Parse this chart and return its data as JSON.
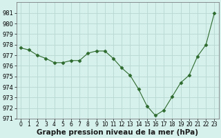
{
  "x": [
    0,
    1,
    2,
    3,
    4,
    5,
    6,
    7,
    8,
    9,
    10,
    11,
    12,
    13,
    14,
    15,
    16,
    17,
    18,
    19,
    20,
    21,
    22,
    23
  ],
  "y": [
    977.7,
    977.5,
    977.0,
    976.7,
    976.3,
    976.3,
    976.5,
    976.5,
    977.2,
    977.4,
    977.4,
    976.7,
    975.8,
    975.1,
    973.8,
    972.2,
    971.3,
    971.8,
    973.1,
    974.4,
    975.1,
    976.9,
    978.0,
    981.0
  ],
  "line_color": "#2d6a2d",
  "marker": "D",
  "markersize": 2.5,
  "bg_color": "#d6f0eb",
  "grid_color": "#b8d8d0",
  "xlabel": "Graphe pression niveau de la mer (hPa)",
  "ylim": [
    971,
    982
  ],
  "yticks": [
    971,
    972,
    973,
    974,
    975,
    976,
    977,
    978,
    979,
    980,
    981
  ],
  "xticks": [
    0,
    1,
    2,
    3,
    4,
    5,
    6,
    7,
    8,
    9,
    10,
    11,
    12,
    13,
    14,
    15,
    16,
    17,
    18,
    19,
    20,
    21,
    22,
    23
  ],
  "xlabel_fontsize": 7.5,
  "ytick_fontsize": 6.0,
  "xtick_fontsize": 5.5
}
